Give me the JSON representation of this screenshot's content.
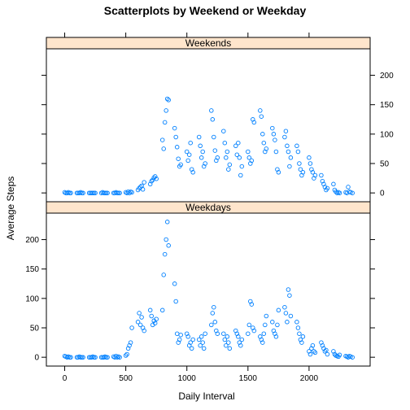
{
  "chart_data": {
    "type": "scatter",
    "title": "Scatterplots by Weekend or Weekday",
    "xlabel": "Daily Interval",
    "ylabel": "Average Steps",
    "xlim": [
      -150,
      2500
    ],
    "ylim": [
      -15,
      245
    ],
    "x_ticks": [
      0,
      500,
      1000,
      1500,
      2000
    ],
    "y_ticks": [
      0,
      50,
      100,
      150,
      200
    ],
    "colors": {
      "points": "#0080ff",
      "strip": "#ffe5cc"
    },
    "panels": [
      {
        "name": "Weekends",
        "points": [
          [
            0,
            1
          ],
          [
            10,
            0
          ],
          [
            20,
            0
          ],
          [
            30,
            1
          ],
          [
            40,
            0
          ],
          [
            50,
            0
          ],
          [
            100,
            0
          ],
          [
            110,
            0
          ],
          [
            120,
            0
          ],
          [
            130,
            1
          ],
          [
            140,
            0
          ],
          [
            150,
            0
          ],
          [
            200,
            0
          ],
          [
            210,
            0
          ],
          [
            220,
            0
          ],
          [
            230,
            0
          ],
          [
            240,
            0
          ],
          [
            250,
            0
          ],
          [
            300,
            0
          ],
          [
            310,
            1
          ],
          [
            320,
            0
          ],
          [
            330,
            0
          ],
          [
            340,
            0
          ],
          [
            350,
            0
          ],
          [
            400,
            0
          ],
          [
            410,
            0
          ],
          [
            420,
            1
          ],
          [
            430,
            0
          ],
          [
            440,
            0
          ],
          [
            450,
            0
          ],
          [
            500,
            1
          ],
          [
            510,
            0
          ],
          [
            520,
            2
          ],
          [
            530,
            0
          ],
          [
            540,
            2
          ],
          [
            550,
            1
          ],
          [
            600,
            5
          ],
          [
            610,
            8
          ],
          [
            620,
            10
          ],
          [
            630,
            12
          ],
          [
            640,
            6
          ],
          [
            650,
            18
          ],
          [
            700,
            15
          ],
          [
            710,
            20
          ],
          [
            720,
            22
          ],
          [
            730,
            26
          ],
          [
            740,
            28
          ],
          [
            750,
            24
          ],
          [
            800,
            90
          ],
          [
            810,
            75
          ],
          [
            820,
            120
          ],
          [
            830,
            140
          ],
          [
            840,
            160
          ],
          [
            850,
            158
          ],
          [
            900,
            110
          ],
          [
            910,
            95
          ],
          [
            920,
            78
          ],
          [
            930,
            58
          ],
          [
            940,
            45
          ],
          [
            950,
            48
          ],
          [
            1000,
            70
          ],
          [
            1010,
            55
          ],
          [
            1020,
            65
          ],
          [
            1030,
            85
          ],
          [
            1040,
            40
          ],
          [
            1050,
            35
          ],
          [
            1100,
            95
          ],
          [
            1110,
            80
          ],
          [
            1120,
            60
          ],
          [
            1130,
            70
          ],
          [
            1140,
            45
          ],
          [
            1150,
            50
          ],
          [
            1200,
            140
          ],
          [
            1210,
            125
          ],
          [
            1220,
            95
          ],
          [
            1230,
            72
          ],
          [
            1240,
            55
          ],
          [
            1250,
            60
          ],
          [
            1300,
            105
          ],
          [
            1310,
            85
          ],
          [
            1320,
            60
          ],
          [
            1330,
            70
          ],
          [
            1340,
            40
          ],
          [
            1350,
            48
          ],
          [
            1400,
            80
          ],
          [
            1410,
            65
          ],
          [
            1420,
            85
          ],
          [
            1430,
            60
          ],
          [
            1440,
            30
          ],
          [
            1450,
            45
          ],
          [
            1500,
            70
          ],
          [
            1510,
            60
          ],
          [
            1520,
            50
          ],
          [
            1530,
            55
          ],
          [
            1540,
            125
          ],
          [
            1550,
            120
          ],
          [
            1600,
            140
          ],
          [
            1610,
            130
          ],
          [
            1620,
            100
          ],
          [
            1630,
            85
          ],
          [
            1640,
            70
          ],
          [
            1650,
            75
          ],
          [
            1700,
            110
          ],
          [
            1710,
            100
          ],
          [
            1720,
            90
          ],
          [
            1730,
            70
          ],
          [
            1740,
            40
          ],
          [
            1750,
            35
          ],
          [
            1800,
            95
          ],
          [
            1810,
            105
          ],
          [
            1820,
            80
          ],
          [
            1830,
            70
          ],
          [
            1840,
            45
          ],
          [
            1850,
            60
          ],
          [
            1900,
            80
          ],
          [
            1910,
            70
          ],
          [
            1920,
            50
          ],
          [
            1930,
            40
          ],
          [
            1940,
            30
          ],
          [
            1950,
            35
          ],
          [
            2000,
            60
          ],
          [
            2010,
            50
          ],
          [
            2020,
            40
          ],
          [
            2030,
            35
          ],
          [
            2040,
            25
          ],
          [
            2050,
            30
          ],
          [
            2100,
            30
          ],
          [
            2110,
            20
          ],
          [
            2120,
            15
          ],
          [
            2130,
            10
          ],
          [
            2140,
            5
          ],
          [
            2150,
            8
          ],
          [
            2200,
            15
          ],
          [
            2210,
            5
          ],
          [
            2220,
            2
          ],
          [
            2230,
            0
          ],
          [
            2240,
            1
          ],
          [
            2250,
            0
          ],
          [
            2300,
            1
          ],
          [
            2310,
            0
          ],
          [
            2320,
            10
          ],
          [
            2330,
            2
          ],
          [
            2340,
            1
          ],
          [
            2355,
            0
          ]
        ]
      },
      {
        "name": "Weekdays",
        "points": [
          [
            0,
            2
          ],
          [
            10,
            1
          ],
          [
            20,
            0
          ],
          [
            30,
            1
          ],
          [
            40,
            0
          ],
          [
            50,
            0
          ],
          [
            100,
            0
          ],
          [
            110,
            0
          ],
          [
            120,
            1
          ],
          [
            130,
            0
          ],
          [
            140,
            0
          ],
          [
            150,
            0
          ],
          [
            200,
            0
          ],
          [
            210,
            0
          ],
          [
            220,
            0
          ],
          [
            230,
            1
          ],
          [
            240,
            0
          ],
          [
            250,
            0
          ],
          [
            300,
            0
          ],
          [
            310,
            0
          ],
          [
            320,
            0
          ],
          [
            330,
            1
          ],
          [
            340,
            0
          ],
          [
            350,
            0
          ],
          [
            400,
            1
          ],
          [
            410,
            0
          ],
          [
            420,
            2
          ],
          [
            430,
            0
          ],
          [
            440,
            1
          ],
          [
            450,
            0
          ],
          [
            500,
            3
          ],
          [
            510,
            5
          ],
          [
            520,
            15
          ],
          [
            530,
            20
          ],
          [
            540,
            25
          ],
          [
            550,
            50
          ],
          [
            600,
            60
          ],
          [
            610,
            75
          ],
          [
            620,
            55
          ],
          [
            630,
            68
          ],
          [
            640,
            50
          ],
          [
            650,
            45
          ],
          [
            700,
            80
          ],
          [
            710,
            70
          ],
          [
            720,
            55
          ],
          [
            730,
            62
          ],
          [
            740,
            58
          ],
          [
            750,
            65
          ],
          [
            800,
            80
          ],
          [
            810,
            140
          ],
          [
            820,
            175
          ],
          [
            830,
            200
          ],
          [
            840,
            230
          ],
          [
            850,
            190
          ],
          [
            900,
            125
          ],
          [
            910,
            95
          ],
          [
            920,
            40
          ],
          [
            930,
            25
          ],
          [
            940,
            30
          ],
          [
            950,
            38
          ],
          [
            1000,
            40
          ],
          [
            1010,
            35
          ],
          [
            1020,
            20
          ],
          [
            1030,
            25
          ],
          [
            1040,
            15
          ],
          [
            1050,
            30
          ],
          [
            1100,
            30
          ],
          [
            1110,
            20
          ],
          [
            1120,
            35
          ],
          [
            1130,
            25
          ],
          [
            1140,
            15
          ],
          [
            1150,
            40
          ],
          [
            1200,
            55
          ],
          [
            1210,
            75
          ],
          [
            1220,
            85
          ],
          [
            1230,
            60
          ],
          [
            1240,
            45
          ],
          [
            1250,
            40
          ],
          [
            1300,
            40
          ],
          [
            1310,
            30
          ],
          [
            1320,
            20
          ],
          [
            1330,
            35
          ],
          [
            1340,
            25
          ],
          [
            1350,
            15
          ],
          [
            1400,
            45
          ],
          [
            1410,
            40
          ],
          [
            1420,
            35
          ],
          [
            1430,
            25
          ],
          [
            1440,
            20
          ],
          [
            1450,
            30
          ],
          [
            1500,
            40
          ],
          [
            1510,
            55
          ],
          [
            1520,
            95
          ],
          [
            1530,
            90
          ],
          [
            1540,
            50
          ],
          [
            1550,
            45
          ],
          [
            1600,
            35
          ],
          [
            1610,
            30
          ],
          [
            1620,
            25
          ],
          [
            1630,
            40
          ],
          [
            1640,
            55
          ],
          [
            1650,
            70
          ],
          [
            1700,
            60
          ],
          [
            1710,
            45
          ],
          [
            1720,
            40
          ],
          [
            1730,
            35
          ],
          [
            1740,
            55
          ],
          [
            1750,
            80
          ],
          [
            1800,
            85
          ],
          [
            1810,
            75
          ],
          [
            1820,
            60
          ],
          [
            1830,
            115
          ],
          [
            1840,
            105
          ],
          [
            1850,
            70
          ],
          [
            1900,
            60
          ],
          [
            1910,
            50
          ],
          [
            1920,
            40
          ],
          [
            1930,
            30
          ],
          [
            1940,
            25
          ],
          [
            1950,
            35
          ],
          [
            2000,
            10
          ],
          [
            2010,
            5
          ],
          [
            2020,
            15
          ],
          [
            2030,
            20
          ],
          [
            2040,
            10
          ],
          [
            2050,
            8
          ],
          [
            2100,
            25
          ],
          [
            2110,
            20
          ],
          [
            2120,
            15
          ],
          [
            2130,
            10
          ],
          [
            2140,
            12
          ],
          [
            2150,
            5
          ],
          [
            2200,
            10
          ],
          [
            2210,
            5
          ],
          [
            2220,
            3
          ],
          [
            2230,
            2
          ],
          [
            2240,
            1
          ],
          [
            2250,
            4
          ],
          [
            2300,
            2
          ],
          [
            2310,
            1
          ],
          [
            2320,
            0
          ],
          [
            2330,
            2
          ],
          [
            2340,
            1
          ],
          [
            2355,
            0
          ]
        ]
      }
    ]
  }
}
